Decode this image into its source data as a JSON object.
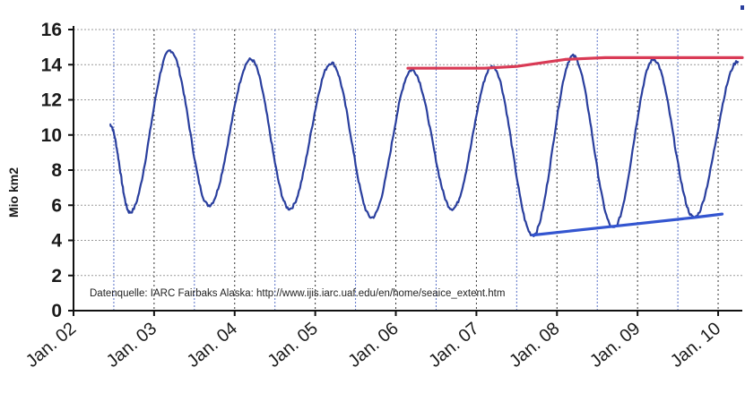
{
  "chart_data": {
    "type": "line",
    "title": "",
    "xlabel": "",
    "ylabel": "Mio km2",
    "ylim": [
      0,
      16
    ],
    "yticks": [
      "0",
      "2",
      "4",
      "6",
      "8",
      "10",
      "12",
      "14",
      "16"
    ],
    "xlim": [
      2002.0,
      2010.3
    ],
    "xtick_labels": [
      "Jan. 02",
      "Jan. 03",
      "Jan. 04",
      "Jan. 05",
      "Jan. 06",
      "Jan. 07",
      "Jan. 08",
      "Jan. 09",
      "Jan. 10"
    ],
    "xtick_values": [
      2002,
      2003,
      2004,
      2005,
      2006,
      2007,
      2008,
      2009,
      2010
    ],
    "grid": true,
    "annotation": "Datenquelle: IARC Fairbaks Alaska:  http://www.ijis.iarc.uaf.edu/en/home/seaice_extent.htm",
    "series": [
      {
        "type": "line",
        "color": "#2a3f9e",
        "x": [
          2002.45,
          2002.7,
          2003.2,
          2003.68,
          2004.2,
          2004.68,
          2005.2,
          2005.7,
          2006.2,
          2006.7,
          2007.2,
          2007.7,
          2008.2,
          2008.7,
          2009.2,
          2009.7,
          2010.25
        ],
        "y": [
          10.6,
          5.6,
          14.8,
          6.0,
          14.3,
          5.8,
          14.1,
          5.3,
          13.7,
          5.8,
          13.9,
          4.3,
          14.5,
          4.7,
          14.3,
          5.3,
          14.2
        ]
      },
      {
        "type": "trend",
        "color": "#d93a55",
        "x": [
          2006.15,
          2007.1,
          2007.5,
          2008.1,
          2008.6,
          2009.5,
          2010.3
        ],
        "y": [
          13.8,
          13.8,
          13.9,
          14.3,
          14.4,
          14.4,
          14.4
        ]
      },
      {
        "type": "trend",
        "color": "#3355d0",
        "x": [
          2007.7,
          2008.7,
          2009.7,
          2010.05
        ],
        "y": [
          4.3,
          4.8,
          5.3,
          5.5
        ]
      }
    ]
  }
}
